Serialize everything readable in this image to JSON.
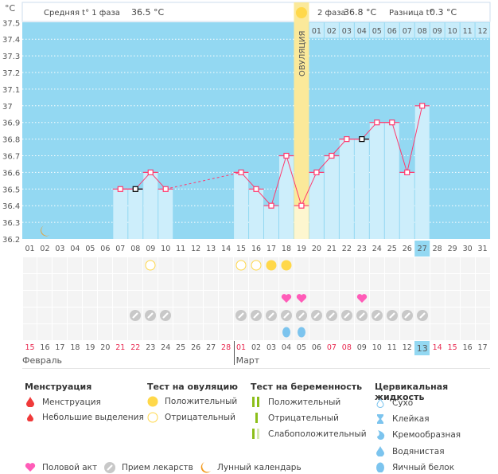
{
  "header": {
    "unit": "°C",
    "phase1_label": "Средняя t° 1 фаза",
    "phase1_value": "36.5 °C",
    "phase2_label": "2 фаза",
    "phase2_value": "36.8 °C",
    "diff_label": "Разница t°",
    "diff_value": "0.3 °C",
    "ovulation_label": "ОВУЛЯЦИЯ"
  },
  "chart_data": {
    "type": "line",
    "x": [
      "01",
      "02",
      "03",
      "04",
      "05",
      "06",
      "07",
      "08",
      "09",
      "10",
      "11",
      "12",
      "13",
      "14",
      "15",
      "16",
      "17",
      "18",
      "19",
      "20",
      "21",
      "22",
      "23",
      "24",
      "25",
      "26",
      "27",
      "28",
      "29",
      "30",
      "31"
    ],
    "y": [
      null,
      null,
      null,
      null,
      null,
      null,
      36.5,
      36.5,
      36.6,
      36.5,
      null,
      null,
      null,
      null,
      36.6,
      36.5,
      36.4,
      36.7,
      36.4,
      36.6,
      36.7,
      36.8,
      36.8,
      36.9,
      36.9,
      36.6,
      37.0,
      null,
      null,
      null,
      null
    ],
    "ylim": [
      36.2,
      37.5
    ],
    "yticks": [
      "36.2",
      "36.3",
      "36.4",
      "36.5",
      "36.6",
      "36.7",
      "36.8",
      "36.9",
      "37",
      "37.1",
      "37.2",
      "37.3",
      "37.4",
      "37.5"
    ],
    "grid": true,
    "marked_days": [
      "08",
      "23"
    ],
    "ovulation_day": "19",
    "current_day": "27",
    "moon_day": "02",
    "phase2_days": [
      "01",
      "02",
      "03",
      "04",
      "05",
      "06",
      "07",
      "08",
      "09",
      "10",
      "11",
      "12"
    ],
    "colors": {
      "background": "#93d8f2",
      "bar": "#cdeefb",
      "line": "#ff3a6e",
      "ovulation": "#fbe99a"
    }
  },
  "rows": {
    "ovulation_test": {
      "09": "negative",
      "15": "negative",
      "16": "negative",
      "17": "positive",
      "18": "positive"
    },
    "pregnancy_test": {},
    "intercourse": [
      "18",
      "19",
      "23"
    ],
    "medication": [
      "08",
      "09",
      "10",
      "15",
      "16",
      "17",
      "18",
      "19",
      "20",
      "21",
      "22",
      "23",
      "24",
      "25",
      "26",
      "27"
    ],
    "cervical_fluid": {
      "18": "egg-white",
      "19": "egg-white"
    }
  },
  "dates": [
    {
      "d": "15",
      "red": true
    },
    {
      "d": "16"
    },
    {
      "d": "17"
    },
    {
      "d": "18"
    },
    {
      "d": "19"
    },
    {
      "d": "20"
    },
    {
      "d": "21",
      "red": true
    },
    {
      "d": "22",
      "red": true
    },
    {
      "d": "23"
    },
    {
      "d": "24"
    },
    {
      "d": "25"
    },
    {
      "d": "26"
    },
    {
      "d": "27"
    },
    {
      "d": "28",
      "red": true
    },
    {
      "d": "01",
      "red": true
    },
    {
      "d": "02"
    },
    {
      "d": "03"
    },
    {
      "d": "04"
    },
    {
      "d": "05"
    },
    {
      "d": "06"
    },
    {
      "d": "07",
      "red": true
    },
    {
      "d": "08",
      "red": true
    },
    {
      "d": "09"
    },
    {
      "d": "10"
    },
    {
      "d": "11"
    },
    {
      "d": "12"
    },
    {
      "d": "13",
      "today": true
    },
    {
      "d": "14",
      "red": true
    },
    {
      "d": "15",
      "red": true
    },
    {
      "d": "16"
    },
    {
      "d": "17"
    }
  ],
  "months": [
    "Февраль",
    "Март"
  ],
  "legend": {
    "menstruation": {
      "title": "Менструация",
      "items": [
        "Менструация",
        "Небольшие выделения"
      ]
    },
    "ovulation_test": {
      "title": "Тест на овуляцию",
      "items": [
        "Положительный",
        "Отрицательный"
      ]
    },
    "pregnancy_test": {
      "title": "Тест на беременность",
      "items": [
        "Положительный",
        "Отрицательный",
        "Слабоположительный"
      ]
    },
    "cervical_fluid": {
      "title": "Цервикальная жидкость",
      "items": [
        "Сухо",
        "Клейкая",
        "Кремообразная",
        "Водянистая",
        "Яичный белок"
      ]
    },
    "other": [
      "Половой акт",
      "Прием лекарств",
      "Лунный календарь"
    ]
  }
}
